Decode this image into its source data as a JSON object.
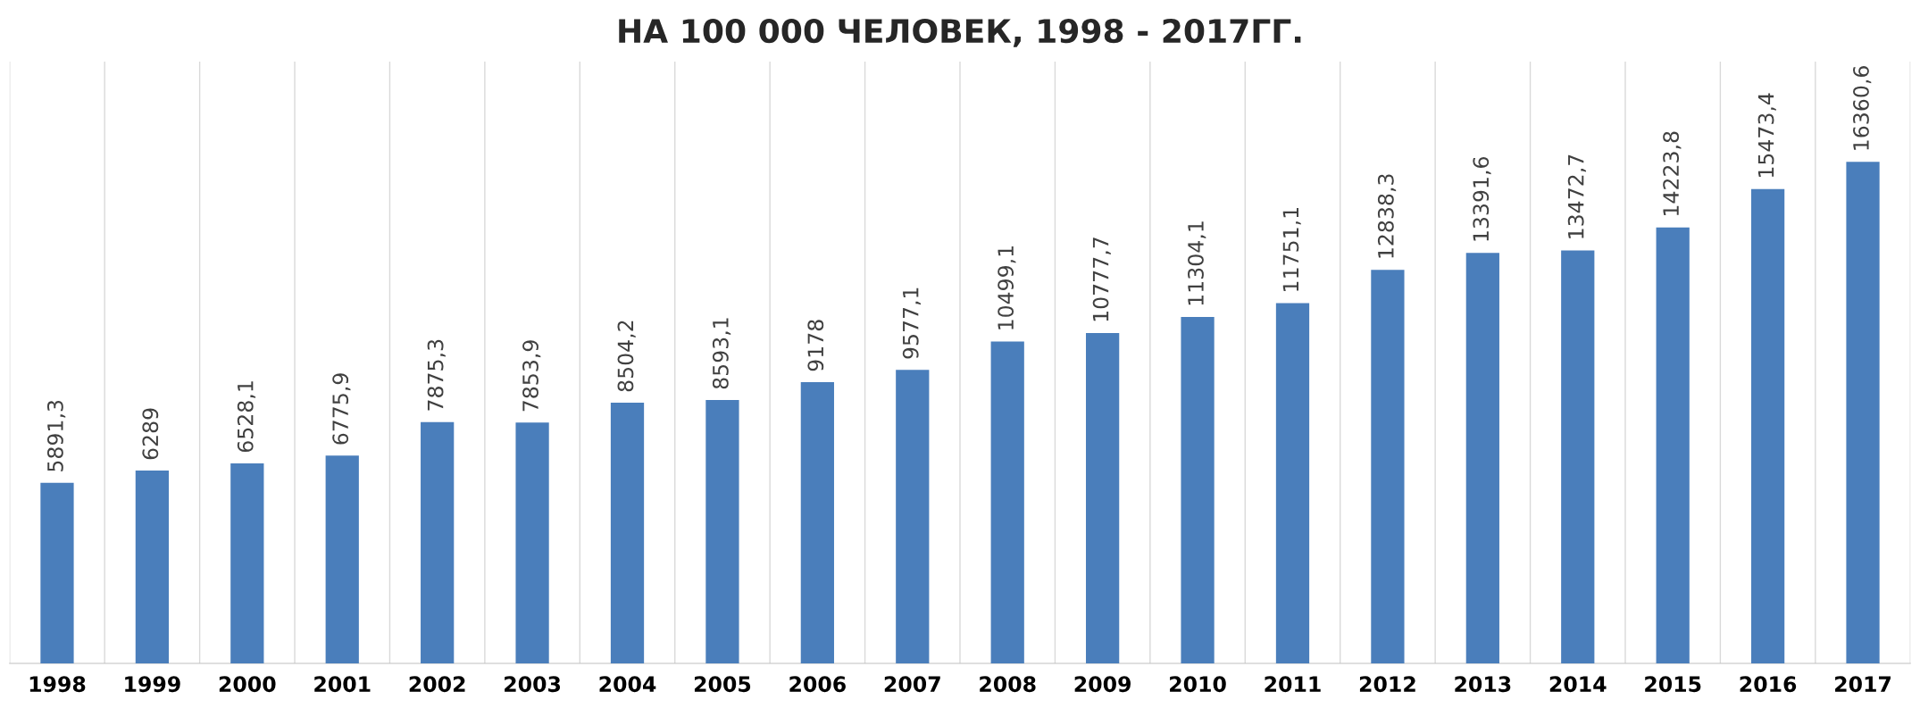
{
  "chart_data": {
    "type": "bar",
    "title": "НА 100 000 ЧЕЛОВЕК, 1998 - 2017ГГ.",
    "categories": [
      "1998",
      "1999",
      "2000",
      "2001",
      "2002",
      "2003",
      "2004",
      "2005",
      "2006",
      "2007",
      "2008",
      "2009",
      "2010",
      "2011",
      "2012",
      "2013",
      "2014",
      "2015",
      "2016",
      "2017"
    ],
    "values": [
      5891.3,
      6289,
      6528.1,
      6775.9,
      7875.3,
      7853.9,
      8504.2,
      8593.1,
      9178,
      9577.1,
      10499.1,
      10777.7,
      11304.1,
      11751.1,
      12838.3,
      13391.6,
      13472.7,
      14223.8,
      15473.4,
      16360.6
    ],
    "value_labels": [
      "5891,3",
      "6289",
      "6528,1",
      "6775,9",
      "7875,3",
      "7853,9",
      "8504,2",
      "8593,1",
      "9178",
      "9577,1",
      "10499,1",
      "10777,7",
      "11304,1",
      "11751,1",
      "12838,3",
      "13391,6",
      "13472,7",
      "14223,8",
      "15473,4",
      "16360,6"
    ],
    "color": "#4a7ebb",
    "grid": "x",
    "tick_labels": "x"
  }
}
